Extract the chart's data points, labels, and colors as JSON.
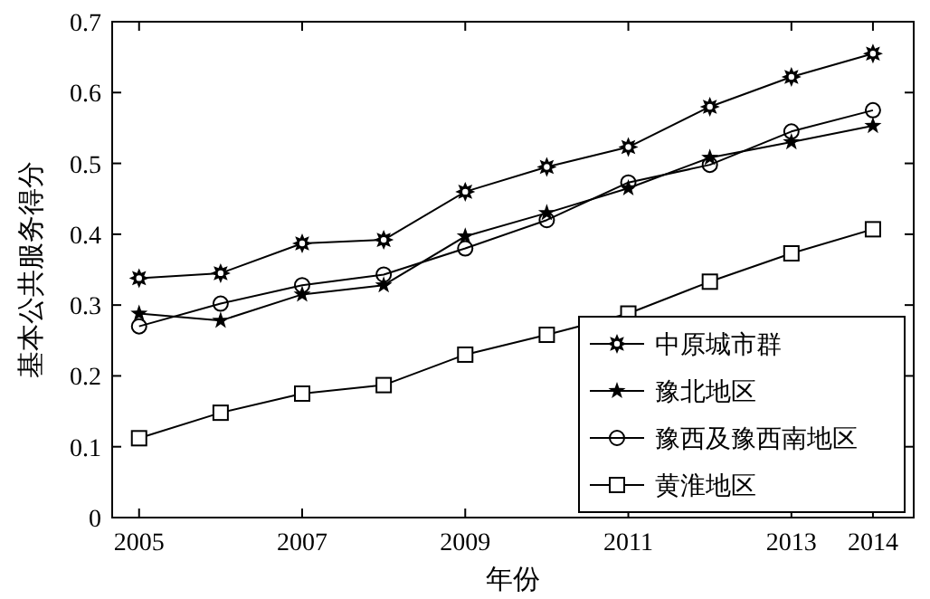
{
  "chart_data": {
    "type": "line",
    "xlabel": "年份",
    "ylabel": "基本公共服务得分",
    "x": [
      2005,
      2006,
      2007,
      2008,
      2009,
      2010,
      2011,
      2012,
      2013,
      2014
    ],
    "xlim": [
      2004.67,
      2014.5
    ],
    "xticks": [
      2005,
      2007,
      2009,
      2011,
      2013,
      2014
    ],
    "ylim": [
      0,
      0.7
    ],
    "yticks": [
      0,
      0.1,
      0.2,
      0.3,
      0.4,
      0.5,
      0.6,
      0.7
    ],
    "grid": false,
    "legend": "bottom right",
    "line_style": "solid",
    "series": [
      {
        "name": "中原城市群",
        "color": "#000000",
        "marker": "cross",
        "values": [
          0.338,
          0.345,
          0.387,
          0.392,
          0.46,
          0.495,
          0.523,
          0.58,
          0.622,
          0.655
        ]
      },
      {
        "name": "豫北地区",
        "color": "#000000",
        "marker": "star",
        "values": [
          0.288,
          0.278,
          0.315,
          0.328,
          0.397,
          0.43,
          0.465,
          0.508,
          0.53,
          0.553
        ]
      },
      {
        "name": "豫西及豫西南地区",
        "color": "#000000",
        "marker": "circle",
        "values": [
          0.27,
          0.302,
          0.328,
          0.343,
          0.38,
          0.42,
          0.473,
          0.498,
          0.545,
          0.575
        ]
      },
      {
        "name": "黄淮地区",
        "color": "#000000",
        "marker": "square",
        "values": [
          0.112,
          0.148,
          0.175,
          0.187,
          0.23,
          0.258,
          0.288,
          0.333,
          0.373,
          0.407
        ]
      }
    ]
  }
}
